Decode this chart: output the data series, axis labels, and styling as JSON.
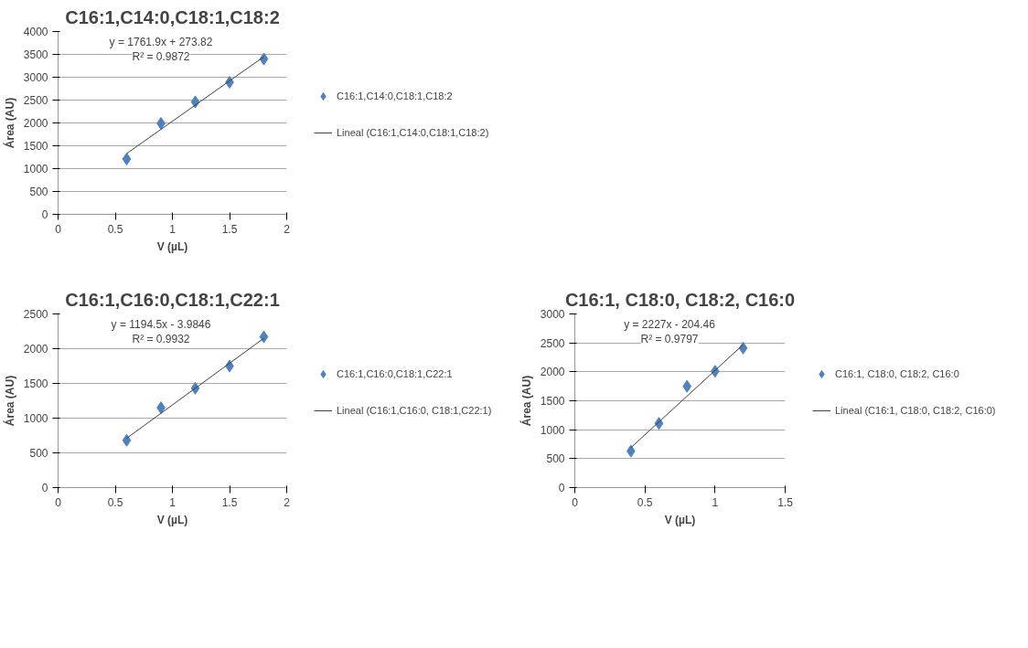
{
  "chart_data": [
    {
      "type": "scatter",
      "title": "C16:1,C14:0,C18:1,C18:2",
      "xlabel": "V (µL)",
      "ylabel": "Área (AU)",
      "x": [
        0.6,
        0.9,
        1.2,
        1.5,
        1.8
      ],
      "grid": "y",
      "legend": "right",
      "xlim": [
        0,
        2
      ],
      "xticks": [
        0,
        0.5,
        1,
        1.5,
        2
      ],
      "ylim": [
        0,
        4000
      ],
      "yticks": [
        0,
        500,
        1000,
        1500,
        2000,
        2500,
        3000,
        3500,
        4000
      ],
      "series": [
        {
          "name": "C16:1,C14:0,C18:1,C18:2",
          "marker": "diamond",
          "color": "#4f81bd",
          "values": [
            1210,
            1990,
            2460,
            2890,
            3400
          ]
        },
        {
          "type": "line",
          "name": "Lineal (C16:1,C14:0,C18:1,C18:2)",
          "color": "#404040",
          "x": [
            0.6,
            1.8
          ],
          "values": [
            1330,
            3450
          ]
        }
      ],
      "annotations": [
        "y = 1761.9x + 273.82",
        "R² = 0.9872"
      ]
    },
    {
      "type": "scatter",
      "title": "C16:1,C16:0,C18:1,C22:1",
      "xlabel": "V (µL)",
      "ylabel": "Área (AU)",
      "x": [
        0.6,
        0.9,
        1.2,
        1.5,
        1.8
      ],
      "grid": "y",
      "legend": "right",
      "xlim": [
        0,
        2
      ],
      "xticks": [
        0,
        0.5,
        1,
        1.5,
        2
      ],
      "ylim": [
        0,
        2500
      ],
      "yticks": [
        0,
        500,
        1000,
        1500,
        2000,
        2500
      ],
      "series": [
        {
          "name": "C16:1,C16:0,C18:1,C22:1",
          "marker": "diamond",
          "color": "#4f81bd",
          "values": [
            680,
            1150,
            1430,
            1750,
            2170
          ]
        },
        {
          "type": "line",
          "name": "Lineal (C16:1,C16:0, C18:1,C22:1)",
          "color": "#404040",
          "x": [
            0.6,
            1.8
          ],
          "values": [
            710,
            2150
          ]
        }
      ],
      "annotations": [
        "y = 1194.5x - 3.9846",
        "R² = 0.9932"
      ]
    },
    {
      "type": "scatter",
      "title": "C16:1, C18:0, C18:2, C16:0",
      "xlabel": "V (µL)",
      "ylabel": "Área (AU)",
      "x": [
        0.4,
        0.6,
        0.8,
        1.0,
        1.2
      ],
      "grid": "y",
      "legend": "right",
      "xlim": [
        0,
        1.5
      ],
      "xticks": [
        0,
        0.5,
        1,
        1.5
      ],
      "ylim": [
        0,
        3000
      ],
      "yticks": [
        0,
        500,
        1000,
        1500,
        2000,
        2500,
        3000
      ],
      "series": [
        {
          "name": "C16:1, C18:0, C18:2, C16:0",
          "marker": "diamond",
          "color": "#4f81bd",
          "values": [
            630,
            1110,
            1750,
            2010,
            2410
          ]
        },
        {
          "type": "line",
          "name": "Lineal (C16:1, C18:0, C18:2, C16:0)",
          "color": "#404040",
          "x": [
            0.4,
            1.2
          ],
          "values": [
            690,
            2470
          ]
        }
      ],
      "annotations": [
        "y = 2227x - 204.46",
        "R² = 0.9797"
      ]
    }
  ]
}
